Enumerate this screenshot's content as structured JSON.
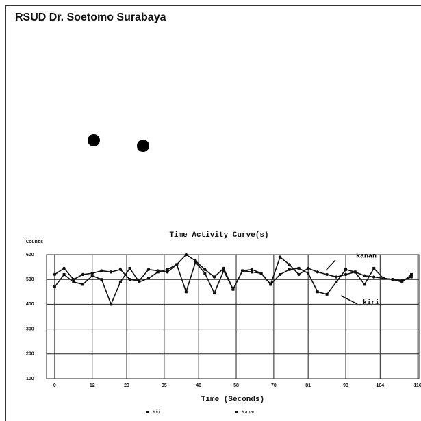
{
  "header": {
    "title": "RSUD Dr. Soetomo Surabaya"
  },
  "chart_data": {
    "type": "line",
    "title": "Time Activity Curve(s)",
    "y_label": "Counts",
    "x_label": "Time (Seconds)",
    "x": [
      0,
      3,
      6,
      9,
      12,
      15,
      18,
      21,
      24,
      27,
      30,
      33,
      36,
      39,
      42,
      45,
      48,
      51,
      54,
      57,
      60,
      63,
      66,
      69,
      72,
      75,
      78,
      81,
      84,
      87,
      90,
      93,
      96,
      99,
      102,
      105,
      108,
      111,
      114
    ],
    "series": [
      {
        "name": "Kiri",
        "color": "#111111",
        "marker": "square",
        "values": [
          470,
          520,
          490,
          480,
          515,
          500,
          400,
          490,
          545,
          490,
          505,
          530,
          540,
          560,
          450,
          570,
          525,
          445,
          535,
          460,
          535,
          540,
          525,
          480,
          520,
          540,
          545,
          525,
          450,
          440,
          490,
          540,
          530,
          480,
          545,
          505,
          500,
          490,
          520
        ]
      },
      {
        "name": "Kanan",
        "color": "#111111",
        "marker": "circle",
        "values": [
          520,
          545,
          500,
          520,
          525,
          535,
          530,
          540,
          500,
          495,
          540,
          535,
          530,
          560,
          600,
          575,
          540,
          510,
          545,
          460,
          535,
          530,
          525,
          480,
          590,
          560,
          520,
          545,
          530,
          520,
          510,
          520,
          530,
          515,
          510,
          505,
          500,
          495,
          510
        ]
      }
    ],
    "annotations": [
      "kanan",
      "kiri"
    ],
    "xlim": [
      -2.6,
      116.4
    ],
    "xticks": [
      0,
      12,
      23,
      35,
      46,
      58,
      70,
      81,
      93,
      104,
      116
    ],
    "ylim": [
      100,
      600
    ],
    "yticks": [
      600,
      500,
      400,
      300,
      200,
      100
    ],
    "grid": true
  }
}
